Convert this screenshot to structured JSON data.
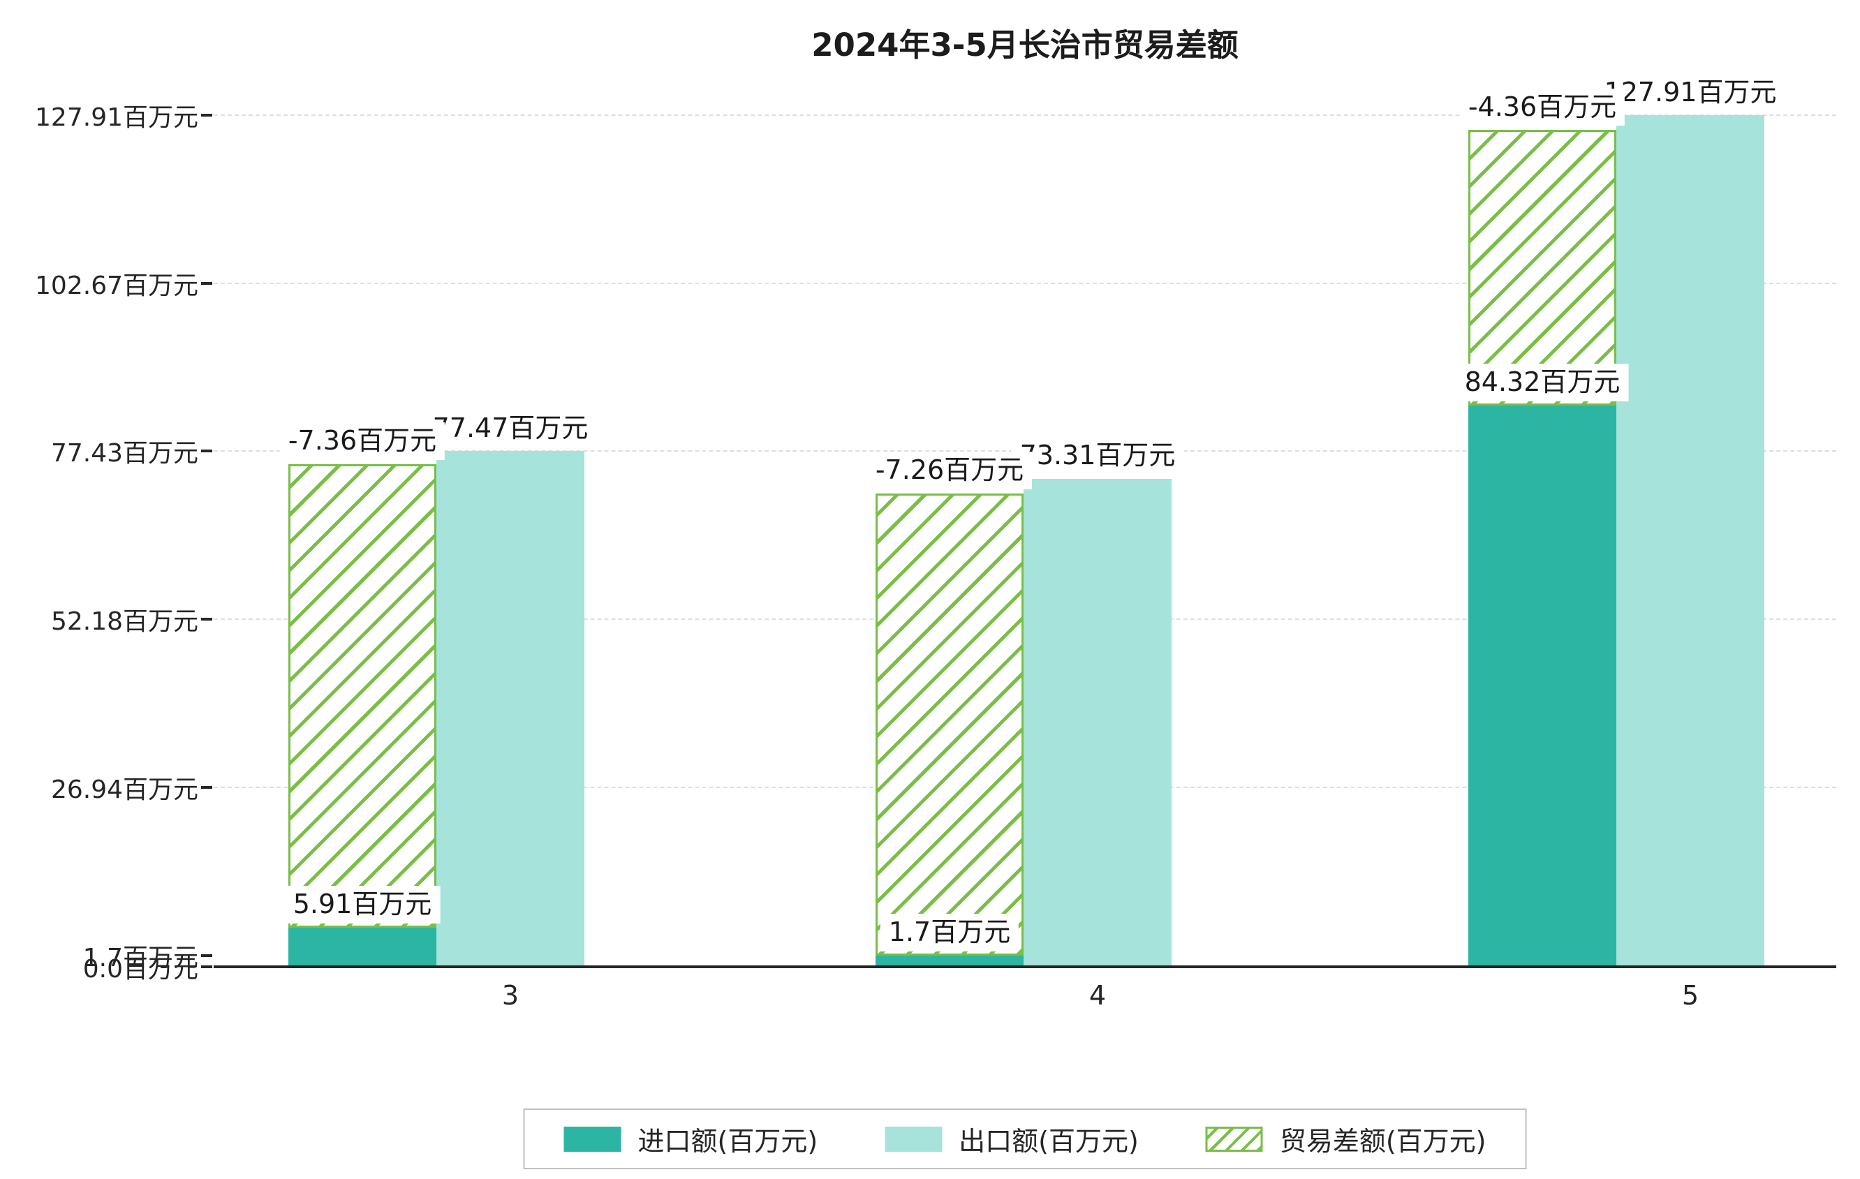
{
  "title": "2024年3-5月长治市贸易差额",
  "y_axis": {
    "tick_labels": [
      "127.91百万元",
      "102.67百万元",
      "77.43百万元",
      "52.18百万元",
      "26.94百万元",
      "1.7百万元",
      "0.0百万元"
    ],
    "tick_values": [
      127.91,
      102.67,
      77.43,
      52.18,
      26.94,
      1.7,
      0.0
    ]
  },
  "x_axis": {
    "tick_labels": [
      "3",
      "4",
      "5"
    ]
  },
  "legend": {
    "items": [
      {
        "label": "进口额(百万元)",
        "series": "import"
      },
      {
        "label": "出口额(百万元)",
        "series": "export"
      },
      {
        "label": "贸易差额(百万元)",
        "series": "balance"
      }
    ]
  },
  "colors": {
    "import": "#2cb5a3",
    "export": "#a6e3da",
    "balance": "#79be46",
    "grid": "#dedede",
    "axis": "#262626",
    "text": "#262626",
    "background": "#ffffff"
  },
  "chart_data": {
    "type": "bar",
    "title": "2024年3-5月长治市贸易差额",
    "categories": [
      "3",
      "4",
      "5"
    ],
    "unit": "百万元",
    "series": [
      {
        "name": "进口额(百万元)",
        "values": [
          5.91,
          1.7,
          84.32
        ],
        "data_labels": [
          "5.91百万元",
          "1.7百万元",
          "84.32百万元"
        ],
        "style": "solid-teal"
      },
      {
        "name": "出口额(百万元)",
        "values": [
          77.47,
          73.31,
          127.91
        ],
        "data_labels": [
          "77.47百万元",
          "73.31百万元",
          "127.91百万元"
        ],
        "style": "solid-light-teal"
      },
      {
        "name": "贸易差额(百万元)",
        "values": [
          -7.36,
          -7.26,
          -4.36
        ],
        "data_labels": [
          "-7.36百万元",
          "-7.26百万元",
          "-4.36百万元"
        ],
        "style": "green-hatched",
        "bar_spans": [
          [
            5.91,
            75.5
          ],
          [
            1.7,
            71.1
          ],
          [
            84.32,
            125.7
          ]
        ]
      }
    ],
    "ylim": [
      0,
      133
    ],
    "grid": true,
    "legend_position": "bottom"
  }
}
